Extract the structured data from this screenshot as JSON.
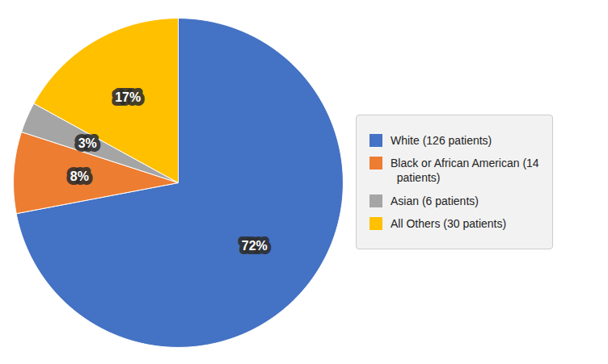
{
  "chart_data": {
    "type": "pie",
    "categories": [
      "White (126 patients)",
      "Black or African American (14\n  patients)",
      "Asian (6 patients)",
      "All Others (30 patients)"
    ],
    "values": [
      72,
      8,
      3,
      17
    ],
    "value_labels": [
      "72%",
      "8%",
      "3%",
      "17%"
    ],
    "colors": [
      "#4472C4",
      "#ED7D31",
      "#A5A5A5",
      "#FFC000"
    ],
    "data_labels": true,
    "legend": "right"
  }
}
